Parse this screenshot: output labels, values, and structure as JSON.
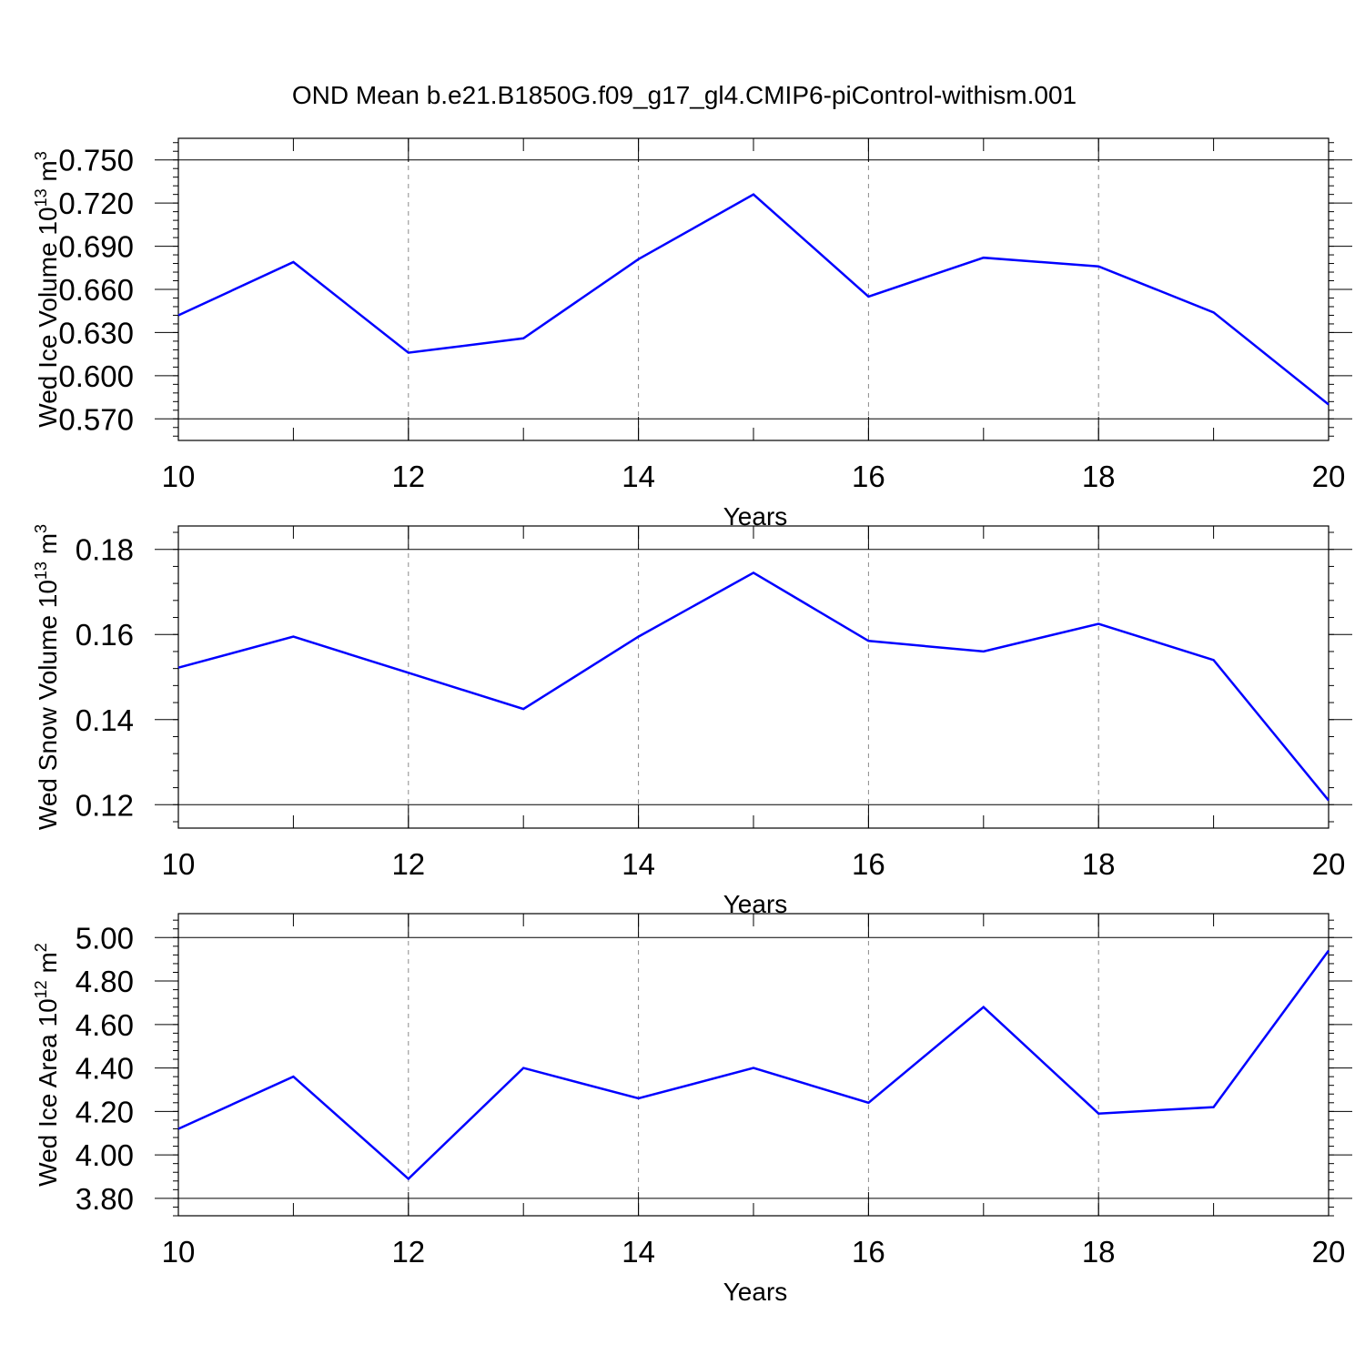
{
  "title": "OND Mean b.e21.B1850G.f09_g17_gl4.CMIP6-piControl-withism.001",
  "colors": {
    "line": "#0000ff",
    "grid": "#8a8a8a",
    "axis": "#000000"
  },
  "chart_data": [
    {
      "type": "line",
      "ylabel": {
        "main": "Wed Ice Volume 10",
        "sup": "13",
        "unit": "m",
        "unit_sup": "3"
      },
      "xlabel": "Years",
      "x": [
        10,
        11,
        12,
        13,
        14,
        15,
        16,
        17,
        18,
        19,
        20
      ],
      "values": [
        0.642,
        0.679,
        0.616,
        0.626,
        0.681,
        0.726,
        0.655,
        0.682,
        0.676,
        0.644,
        0.58
      ],
      "xlim": [
        10,
        20
      ],
      "ylim": [
        0.555,
        0.765
      ],
      "xticks": [
        "10",
        "12",
        "14",
        "16",
        "18",
        "20"
      ],
      "yticks": [
        "0.570",
        "0.600",
        "0.630",
        "0.660",
        "0.690",
        "0.720",
        "0.750"
      ],
      "grid": "vertical dashed at major x ticks"
    },
    {
      "type": "line",
      "ylabel": {
        "main": "Wed Snow Volume 10",
        "sup": "13",
        "unit": "m",
        "unit_sup": "3"
      },
      "xlabel": "Years",
      "x": [
        10,
        11,
        12,
        13,
        14,
        15,
        16,
        17,
        18,
        19,
        20
      ],
      "values": [
        0.1522,
        0.1595,
        0.151,
        0.1425,
        0.1595,
        0.1745,
        0.1585,
        0.156,
        0.1625,
        0.154,
        0.121
      ],
      "xlim": [
        10,
        20
      ],
      "ylim": [
        0.1145,
        0.1855
      ],
      "xticks": [
        "10",
        "12",
        "14",
        "16",
        "18",
        "20"
      ],
      "yticks": [
        "0.12",
        "0.14",
        "0.16",
        "0.18"
      ],
      "grid": "vertical dashed at major x ticks"
    },
    {
      "type": "line",
      "ylabel": {
        "main": "Wed Ice Area 10",
        "sup": "12",
        "unit": "m",
        "unit_sup": "2"
      },
      "xlabel": "Years",
      "x": [
        10,
        11,
        12,
        13,
        14,
        15,
        16,
        17,
        18,
        19,
        20
      ],
      "values": [
        4.12,
        4.36,
        3.89,
        4.4,
        4.26,
        4.4,
        4.24,
        4.68,
        4.19,
        4.22,
        4.94
      ],
      "xlim": [
        10,
        20
      ],
      "ylim": [
        3.72,
        5.11
      ],
      "xticks": [
        "10",
        "12",
        "14",
        "16",
        "18",
        "20"
      ],
      "yticks": [
        "3.80",
        "4.00",
        "4.20",
        "4.40",
        "4.60",
        "4.80",
        "5.00"
      ],
      "grid": "vertical dashed at major x ticks"
    }
  ]
}
